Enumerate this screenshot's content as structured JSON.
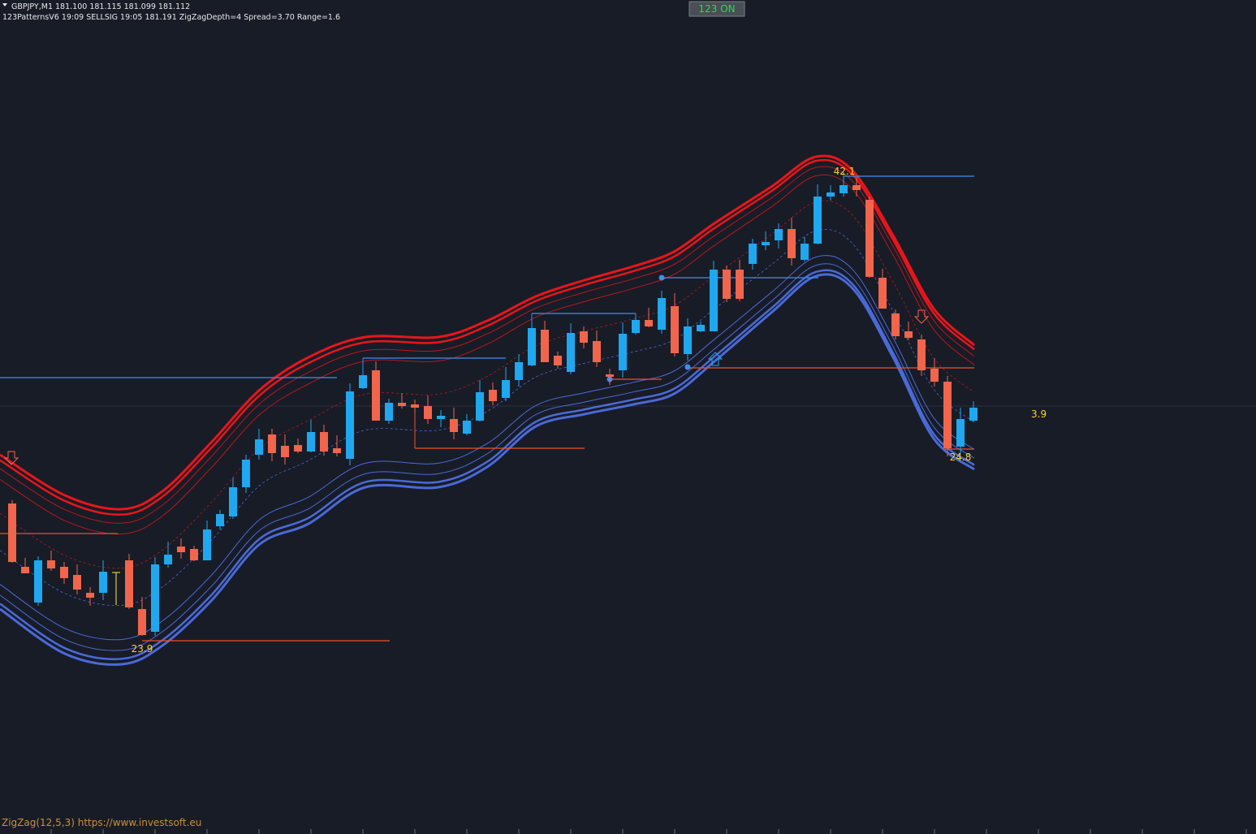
{
  "header": {
    "symbol_line": "GBPJPY,M1  181.100 181.115 181.099 181.112",
    "indicator_line": "123PatternsV6  19:09  SELLSIG  19:05  181.191  ZigZagDepth=4  Spread=3.70  Range=1.6"
  },
  "status_button": "123 ON",
  "zigzag_labels": [
    "42.1",
    "23.9",
    "24.8"
  ],
  "side_label": "3.9",
  "footer": "ZigZag(12,5,3) https://www.investsoft.eu"
}
